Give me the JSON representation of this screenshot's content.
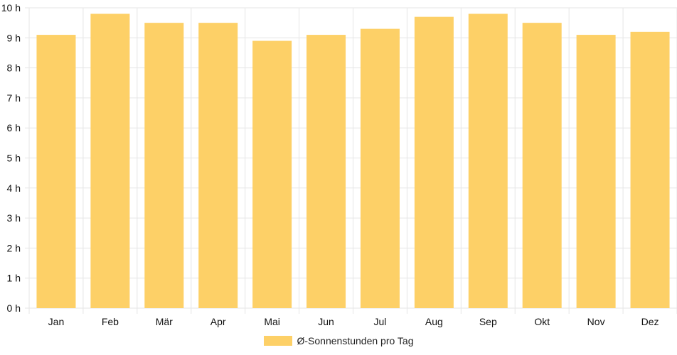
{
  "chart_data": {
    "type": "bar",
    "categories": [
      "Jan",
      "Feb",
      "Mär",
      "Apr",
      "Mai",
      "Jun",
      "Jul",
      "Aug",
      "Sep",
      "Okt",
      "Nov",
      "Dez"
    ],
    "series": [
      {
        "name": "Ø-Sonnenstunden pro Tag",
        "values": [
          9.1,
          9.8,
          9.5,
          9.5,
          8.9,
          9.1,
          9.3,
          9.7,
          9.8,
          9.5,
          9.1,
          9.2
        ]
      }
    ],
    "ylim": [
      0,
      10
    ],
    "ytick_step": 1,
    "ytick_suffix": " h",
    "ytick_labels": [
      "0 h",
      "1 h",
      "2 h",
      "3 h",
      "4 h",
      "5 h",
      "6 h",
      "7 h",
      "8 h",
      "9 h",
      "10 h"
    ],
    "grid": true,
    "legend_position": "bottom",
    "colors": {
      "bar": "#fdd067",
      "grid": "#e6e6e6",
      "text": "#111111"
    }
  },
  "legend": {
    "label": "Ø-Sonnenstunden pro Tag"
  }
}
